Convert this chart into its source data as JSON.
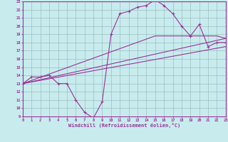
{
  "xlabel": "Windchill (Refroidissement éolien,°C)",
  "background_color": "#c8ecee",
  "line_color": "#993399",
  "grid_color": "#9bbfc0",
  "xmin": 0,
  "xmax": 23,
  "ymin": 9,
  "ymax": 23,
  "line1_x": [
    0,
    1,
    2,
    3,
    4,
    5,
    6,
    7,
    8,
    9,
    10,
    11,
    12,
    13,
    14,
    15,
    16,
    17,
    18,
    19,
    20,
    21,
    22,
    23
  ],
  "line1_y": [
    13,
    13.8,
    13.8,
    14.0,
    13.0,
    13.0,
    11.0,
    9.5,
    8.8,
    10.8,
    19.0,
    21.5,
    21.8,
    22.3,
    22.5,
    23.2,
    22.5,
    21.5,
    20.0,
    18.8,
    20.2,
    17.5,
    18.0,
    18.0
  ],
  "line2_x": [
    0,
    23
  ],
  "line2_y": [
    13.0,
    18.5
  ],
  "line3_x": [
    0,
    23
  ],
  "line3_y": [
    13.0,
    17.5
  ],
  "line4_x": [
    0,
    15,
    22,
    23
  ],
  "line4_y": [
    13.0,
    18.8,
    18.8,
    18.5
  ]
}
